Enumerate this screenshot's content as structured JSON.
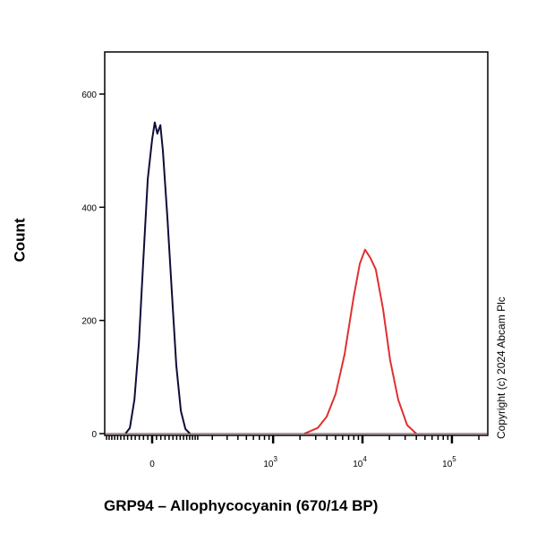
{
  "chart_data": {
    "type": "line",
    "xlabel": "GRP94 – Allophycocyanin (670/14 BP)",
    "ylabel": "Count",
    "x_scale": "biexponential",
    "xlim": [
      -138,
      251000
    ],
    "ylim": [
      0,
      680
    ],
    "x_ticks": [
      {
        "value": 0,
        "label": "0"
      },
      {
        "value": 1000,
        "label": "10",
        "exp": "3"
      },
      {
        "value": 10000,
        "label": "10",
        "exp": "4"
      },
      {
        "value": 100000,
        "label": "10",
        "exp": "5"
      }
    ],
    "y_ticks": [
      0,
      200,
      400,
      600
    ],
    "grid": false,
    "series": [
      {
        "color": "#0d0d3a",
        "points": [
          [
            -66,
            0
          ],
          [
            -54,
            10
          ],
          [
            -42,
            60
          ],
          [
            -31,
            160
          ],
          [
            -21,
            300
          ],
          [
            -10,
            450
          ],
          [
            0,
            520
          ],
          [
            6,
            550
          ],
          [
            12,
            530
          ],
          [
            19,
            545
          ],
          [
            25,
            500
          ],
          [
            36,
            380
          ],
          [
            47,
            250
          ],
          [
            59,
            120
          ],
          [
            72,
            40
          ],
          [
            86,
            8
          ],
          [
            101,
            0
          ]
        ]
      },
      {
        "color": "#e03030",
        "points": [
          [
            2238,
            0
          ],
          [
            3160,
            10
          ],
          [
            3980,
            30
          ],
          [
            5010,
            70
          ],
          [
            6310,
            140
          ],
          [
            7940,
            240
          ],
          [
            9330,
            300
          ],
          [
            10700,
            325
          ],
          [
            12300,
            310
          ],
          [
            14100,
            290
          ],
          [
            17000,
            220
          ],
          [
            20400,
            130
          ],
          [
            25100,
            60
          ],
          [
            31600,
            15
          ],
          [
            39800,
            0
          ]
        ]
      }
    ]
  },
  "copyright": "Copyright (c) 2024 Abcam Plc"
}
